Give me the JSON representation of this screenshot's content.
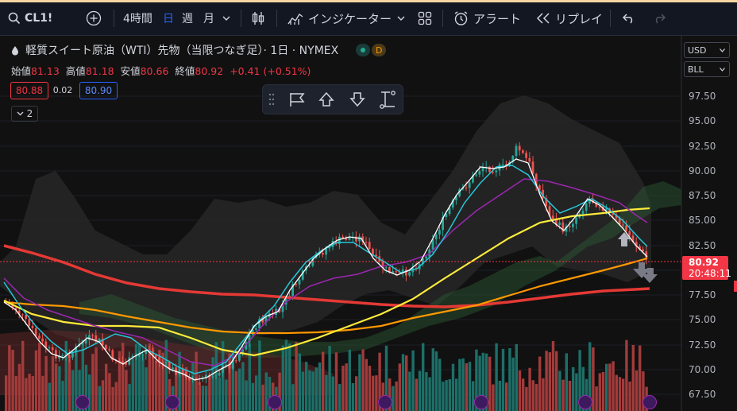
{
  "topbar": {
    "symbol": "CL1!",
    "interval_label": "4時間",
    "day_label": "日",
    "week_label": "週",
    "month_label": "月",
    "indicators_label": "インジケーター",
    "alert_label": "アラート",
    "replay_label": "リプレイ"
  },
  "legend": {
    "title": "軽質スイート原油（WTI）先物（当限つなぎ足）· 1日 · NYMEX",
    "badge": "D",
    "open_label": "始値",
    "open": "81.13",
    "high_label": "高値",
    "high": "81.18",
    "low_label": "安値",
    "low": "80.66",
    "close_label": "終値",
    "close": "80.92",
    "change": "+0.41 (+0.51%)",
    "bid": "80.88",
    "spread": "0.02",
    "ask": "80.90",
    "collapse_count": "2"
  },
  "right_controls": {
    "currency": "USD",
    "unit": "BLL"
  },
  "price_axis": {
    "labels": [
      "97.50",
      "95.00",
      "92.50",
      "90.00",
      "87.50",
      "85.00",
      "82.50",
      "77.50",
      "75.00",
      "72.50",
      "70.00",
      "67.50"
    ],
    "current_price": "80.92",
    "countdown": "20:48:11"
  },
  "colors": {
    "up": "#26a69a",
    "down": "#ef5350",
    "accent": "#2962ff",
    "price_tag": "#f23645"
  }
}
